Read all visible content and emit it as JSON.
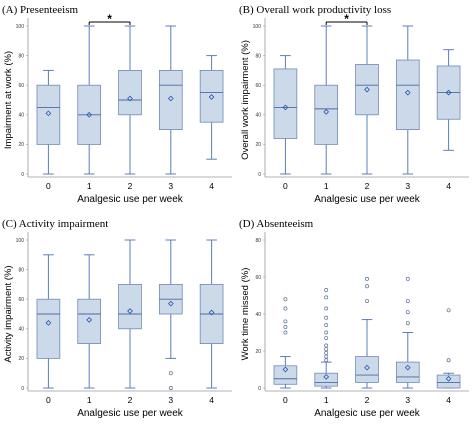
{
  "chart_data": [
    {
      "type": "box",
      "title": "(A) Presenteeism",
      "xlabel": "Analgesic use per week",
      "ylabel": "Impairment at work (%)",
      "ylim": [
        0,
        100
      ],
      "yticks": [
        0,
        20,
        40,
        60,
        80,
        100
      ],
      "categories": [
        "0",
        "1",
        "2",
        "3",
        "4"
      ],
      "boxes": [
        {
          "min": 0,
          "q1": 20,
          "median": 45,
          "q3": 60,
          "max": 70,
          "mean": 41,
          "outliers": []
        },
        {
          "min": 0,
          "q1": 20,
          "median": 40,
          "q3": 60,
          "max": 100,
          "mean": 40,
          "outliers": []
        },
        {
          "min": 0,
          "q1": 40,
          "median": 50,
          "q3": 70,
          "max": 100,
          "mean": 51,
          "outliers": []
        },
        {
          "min": 0,
          "q1": 30,
          "median": 60,
          "q3": 70,
          "max": 100,
          "mean": 51,
          "outliers": []
        },
        {
          "min": 10,
          "q1": 35,
          "median": 55,
          "q3": 70,
          "max": 80,
          "mean": 52,
          "outliers": []
        }
      ],
      "significance": [
        {
          "from": "1",
          "to": "2",
          "label": "*"
        }
      ]
    },
    {
      "type": "box",
      "title": "(B) Overall work productivity loss",
      "xlabel": "Analgesic use per week",
      "ylabel": "Overall work impairment (%)",
      "ylim": [
        0,
        100
      ],
      "yticks": [
        0,
        20,
        40,
        60,
        80,
        100
      ],
      "categories": [
        "0",
        "1",
        "2",
        "3",
        "4"
      ],
      "boxes": [
        {
          "min": 0,
          "q1": 24,
          "median": 45,
          "q3": 71,
          "max": 80,
          "mean": 45,
          "outliers": []
        },
        {
          "min": 0,
          "q1": 20,
          "median": 44,
          "q3": 60,
          "max": 100,
          "mean": 42,
          "outliers": []
        },
        {
          "min": 0,
          "q1": 40,
          "median": 60,
          "q3": 74,
          "max": 100,
          "mean": 57,
          "outliers": []
        },
        {
          "min": 0,
          "q1": 30,
          "median": 60,
          "q3": 77,
          "max": 100,
          "mean": 55,
          "outliers": []
        },
        {
          "min": 16,
          "q1": 37,
          "median": 55,
          "q3": 73,
          "max": 84,
          "mean": 55,
          "outliers": []
        }
      ],
      "significance": [
        {
          "from": "1",
          "to": "2",
          "label": "*"
        }
      ]
    },
    {
      "type": "box",
      "title": "(C) Activity impairment",
      "xlabel": "Analgesic use per week",
      "ylabel": "Activity impairment (%)",
      "ylim": [
        0,
        100
      ],
      "yticks": [
        0,
        20,
        40,
        60,
        80,
        100
      ],
      "categories": [
        "0",
        "1",
        "2",
        "3",
        "4"
      ],
      "boxes": [
        {
          "min": 0,
          "q1": 20,
          "median": 50,
          "q3": 60,
          "max": 90,
          "mean": 44,
          "outliers": []
        },
        {
          "min": 0,
          "q1": 30,
          "median": 50,
          "q3": 60,
          "max": 90,
          "mean": 46,
          "outliers": []
        },
        {
          "min": 0,
          "q1": 40,
          "median": 50,
          "q3": 70,
          "max": 100,
          "mean": 52,
          "outliers": []
        },
        {
          "min": 20,
          "q1": 50,
          "median": 60,
          "q3": 70,
          "max": 100,
          "mean": 57,
          "outliers": [
            10,
            0
          ]
        },
        {
          "min": 0,
          "q1": 30,
          "median": 50,
          "q3": 70,
          "max": 100,
          "mean": 51,
          "outliers": []
        }
      ],
      "significance": []
    },
    {
      "type": "box",
      "title": "(D) Absenteeism",
      "xlabel": "Analgesic use per week",
      "ylabel": "Work time missed (%)",
      "ylim": [
        0,
        80
      ],
      "yticks": [
        0,
        20,
        40,
        60,
        80
      ],
      "categories": [
        "0",
        "1",
        "2",
        "3",
        "4"
      ],
      "boxes": [
        {
          "min": 0,
          "q1": 2,
          "median": 5,
          "q3": 12,
          "max": 17,
          "mean": 10,
          "outliers": [
            30,
            33,
            36,
            43,
            48
          ]
        },
        {
          "min": 0,
          "q1": 1,
          "median": 3,
          "q3": 8,
          "max": 14,
          "mean": 6,
          "outliers": [
            15,
            17,
            19,
            21,
            23,
            27,
            30,
            34,
            38,
            43,
            49,
            53
          ]
        },
        {
          "min": 0,
          "q1": 3,
          "median": 7,
          "q3": 17,
          "max": 37,
          "mean": 11,
          "outliers": [
            47,
            55,
            59
          ]
        },
        {
          "min": 0,
          "q1": 3,
          "median": 6,
          "q3": 14,
          "max": 30,
          "mean": 11,
          "outliers": [
            35,
            41,
            47,
            59
          ]
        },
        {
          "min": 0,
          "q1": 0,
          "median": 3,
          "q3": 7,
          "max": 8,
          "mean": 5,
          "outliers": [
            15,
            42
          ]
        }
      ],
      "significance": []
    }
  ]
}
